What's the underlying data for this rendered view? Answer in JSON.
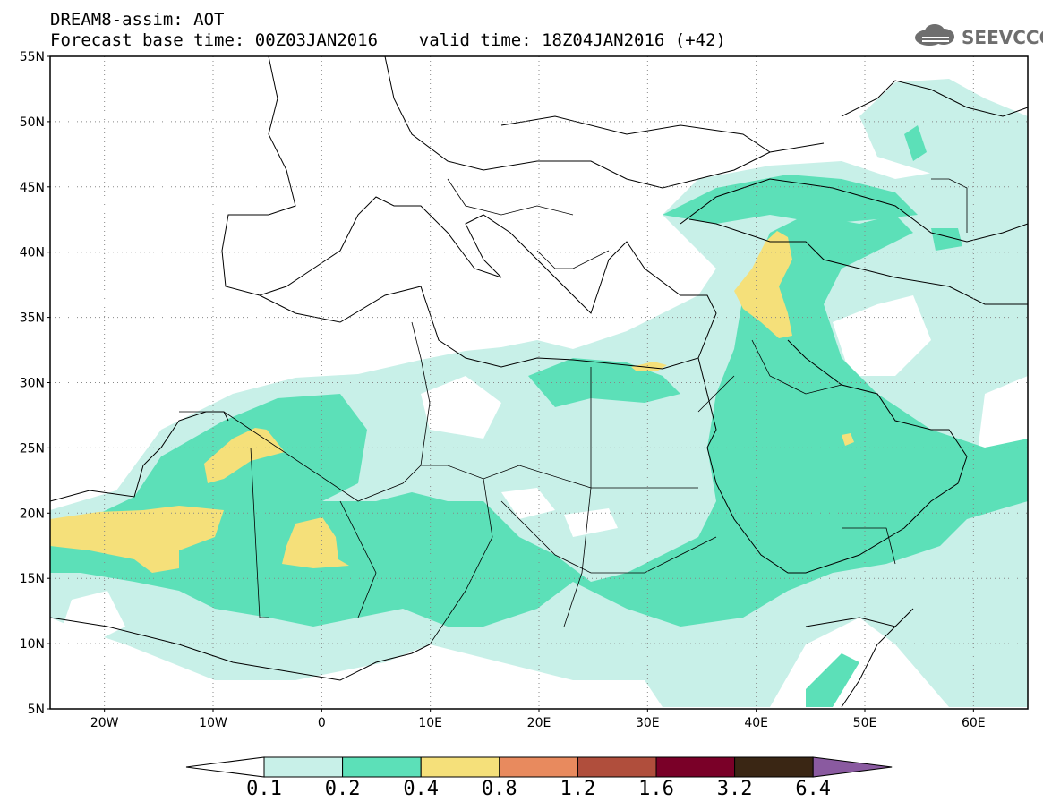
{
  "header": {
    "line1": "DREAM8-assim: AOT",
    "line2": "Forecast base time: 00Z03JAN2016    valid time: 18Z04JAN2016 (+42)"
  },
  "logo": {
    "text": "SEEVCCC",
    "icon": "cloud-icon"
  },
  "map": {
    "lon_range": [
      -25,
      65
    ],
    "lat_range": [
      5,
      55
    ],
    "grid": "dotted",
    "lat_ticks": [
      {
        "value": 55,
        "label": "55N"
      },
      {
        "value": 50,
        "label": "50N"
      },
      {
        "value": 45,
        "label": "45N"
      },
      {
        "value": 40,
        "label": "40N"
      },
      {
        "value": 35,
        "label": "35N"
      },
      {
        "value": 30,
        "label": "30N"
      },
      {
        "value": 25,
        "label": "25N"
      },
      {
        "value": 20,
        "label": "20N"
      },
      {
        "value": 15,
        "label": "15N"
      },
      {
        "value": 10,
        "label": "10N"
      },
      {
        "value": 5,
        "label": "5N"
      }
    ],
    "lon_ticks": [
      {
        "value": -20,
        "label": "20W"
      },
      {
        "value": -10,
        "label": "10W"
      },
      {
        "value": 0,
        "label": "0"
      },
      {
        "value": 10,
        "label": "10E"
      },
      {
        "value": 20,
        "label": "20E"
      },
      {
        "value": 30,
        "label": "30E"
      },
      {
        "value": 40,
        "label": "40E"
      },
      {
        "value": 50,
        "label": "50E"
      },
      {
        "value": 60,
        "label": "60E"
      }
    ]
  },
  "colorbar": {
    "levels": [
      "0.1",
      "0.2",
      "0.4",
      "0.8",
      "1.2",
      "1.6",
      "3.2",
      "6.4"
    ],
    "colors": [
      "#ffffff",
      "#c8f0e8",
      "#5ce0b8",
      "#f5e07a",
      "#e88a5e",
      "#b04e3c",
      "#7a0028",
      "#3a2614",
      "#8a5aa0"
    ]
  }
}
